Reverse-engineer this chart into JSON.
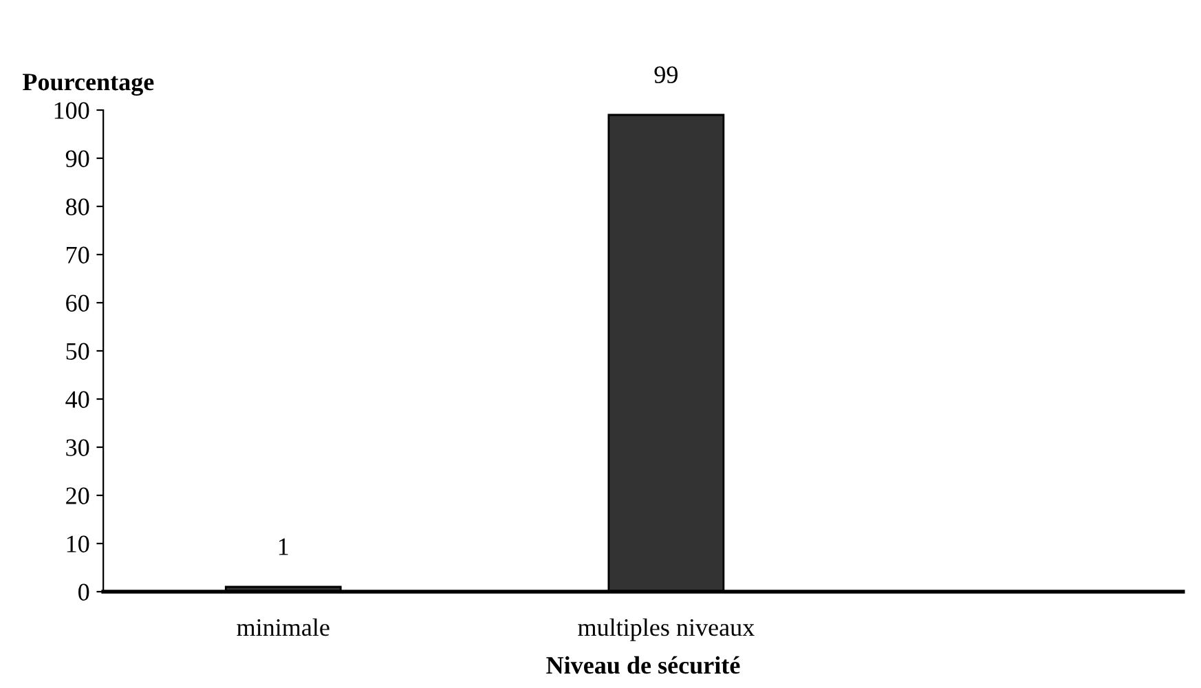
{
  "chart_data": {
    "type": "bar",
    "ylabel": "Pourcentage",
    "xlabel": "Niveau de sécurité",
    "categories": [
      "minimale",
      "multiples niveaux",
      null
    ],
    "values": [
      1,
      99,
      null
    ],
    "color": "#333333",
    "ylim": [
      0,
      100
    ],
    "yticks": [
      0,
      10,
      20,
      30,
      40,
      50,
      60,
      70,
      80,
      90,
      100
    ],
    "data_labels": true,
    "grid": false,
    "legend": false
  }
}
